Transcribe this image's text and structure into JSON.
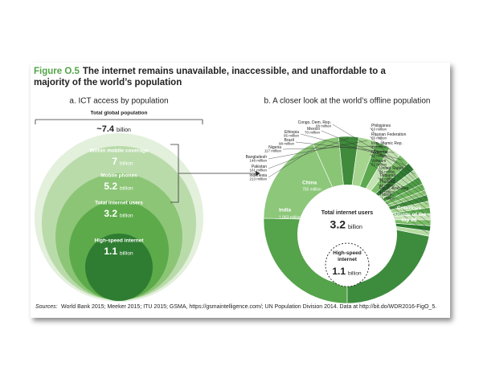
{
  "figure": {
    "label": "Figure O.5",
    "title": "The internet remains unavailable, inaccessible, and unaffordable to a majority of the world’s population"
  },
  "panel_a": {
    "title": "a. ICT access by population",
    "total": {
      "label": "Total global population",
      "value": "~7.4",
      "unit": "billion"
    },
    "circles": [
      {
        "label": "Within mobile coverage",
        "value": "7",
        "unit": "billion"
      },
      {
        "label": "Mobile phones",
        "value": "5.2",
        "unit": "billion"
      },
      {
        "label": "Total internet users",
        "value": "3.2",
        "unit": "billion"
      },
      {
        "label": "High-speed internet",
        "value": "1.1",
        "unit": "billion"
      }
    ]
  },
  "panel_b": {
    "title": "b. A closer look at the world’s offline population",
    "segments": [
      {
        "name": "India",
        "value": 1063,
        "value_label": "1,063 million"
      },
      {
        "name": "China",
        "value": 755,
        "value_label": "755 million"
      },
      {
        "name": "Indonesia",
        "value": 213,
        "value_label": "213 million"
      },
      {
        "name": "Pakistan",
        "value": 161,
        "value_label": "161 million"
      },
      {
        "name": "Bangladesh",
        "value": 148,
        "value_label": "148 million"
      },
      {
        "name": "Nigeria",
        "value": 117,
        "value_label": "117 million"
      },
      {
        "name": "Brazil",
        "value": 98,
        "value_label": "98 million"
      },
      {
        "name": "Ethiopia",
        "value": 95,
        "value_label": "95 million"
      },
      {
        "name": "Mexico",
        "value": 70,
        "value_label": "70 million"
      },
      {
        "name": "Congo, Dem. Rep.",
        "value": 68,
        "value_label": "68 million"
      },
      {
        "name": "Philippines",
        "value": 63,
        "value_label": "63 million"
      },
      {
        "name": "Russian Federation",
        "value": 55,
        "value_label": "55 million"
      },
      {
        "name": "Iran, Islamic Rep.",
        "value": 39,
        "value_label": "39 million"
      },
      {
        "name": "Myanmar",
        "value": 53,
        "value_label": "53 million"
      },
      {
        "name": "Vietnam",
        "value": 52,
        "value_label": "52 million"
      },
      {
        "name": "United States",
        "value": 51,
        "value_label": "51 million"
      },
      {
        "name": "Tanzania",
        "value": 49,
        "value_label": "49 million"
      },
      {
        "name": "Thailand",
        "value": 48,
        "value_label": "48 million"
      },
      {
        "name": "Egypt, Arab Rep.",
        "value": 43,
        "value_label": "43 million"
      },
      {
        "name": "Turkey",
        "value": 41,
        "value_label": "41 million"
      },
      {
        "name": "Countries outside of the top 20",
        "value": 918
      }
    ],
    "center": {
      "label": "Total internet users",
      "value": "3.2",
      "unit": "billion"
    },
    "inner": {
      "label": "High-speed internet",
      "value": "1.1",
      "unit": "billion"
    }
  },
  "sources": {
    "label": "Sources:",
    "text": "World Bank 2015; Meeker 2015; ITU 2015; GSMA, https://gsmaintelligence.com/; UN Population Division 2014. Data at http://bit.do/WDR2016-FigO_5."
  }
}
